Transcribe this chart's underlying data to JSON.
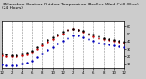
{
  "title": " Milwaukee Weather Outdoor Temperature (Red) vs Wind Chill (Blue) (24 Hours)",
  "title_fontsize": 3.2,
  "bg_color": "#cccccc",
  "plot_bg_color": "#ffffff",
  "grid_color": "#888888",
  "y_ticks": [
    10,
    20,
    30,
    40,
    50,
    60
  ],
  "ylim": [
    5,
    68
  ],
  "xlim": [
    0,
    24
  ],
  "x_ticks": [
    0,
    2,
    4,
    6,
    8,
    10,
    12,
    14,
    16,
    18,
    20,
    22,
    24
  ],
  "x_tick_labels": [
    "12",
    "2",
    "4",
    "6",
    "8",
    "10",
    "12",
    "2",
    "4",
    "6",
    "8",
    "10",
    "12"
  ],
  "time_hours": [
    0,
    1,
    2,
    3,
    4,
    5,
    6,
    7,
    8,
    9,
    10,
    11,
    12,
    13,
    14,
    15,
    16,
    17,
    18,
    19,
    20,
    21,
    22,
    23,
    24
  ],
  "temp_red": [
    22,
    21,
    20,
    21,
    22,
    23,
    26,
    30,
    35,
    40,
    44,
    48,
    51,
    55,
    57,
    56,
    53,
    50,
    47,
    45,
    43,
    42,
    41,
    40,
    39
  ],
  "wind_chill_blue": [
    10,
    9,
    8,
    9,
    11,
    12,
    15,
    19,
    24,
    29,
    33,
    37,
    41,
    45,
    48,
    48,
    46,
    43,
    41,
    39,
    37,
    36,
    35,
    34,
    33
  ],
  "actual_black": [
    24,
    23,
    22,
    22,
    24,
    25,
    28,
    32,
    37,
    42,
    46,
    50,
    53,
    56,
    57,
    56,
    54,
    51,
    49,
    47,
    45,
    44,
    42,
    41,
    40
  ],
  "red_color": "#cc0000",
  "blue_color": "#0000bb",
  "black_color": "#000000",
  "dot_size": 1.5,
  "vgrid_positions": [
    0,
    2,
    4,
    6,
    8,
    10,
    12,
    14,
    16,
    18,
    20,
    22,
    24
  ]
}
